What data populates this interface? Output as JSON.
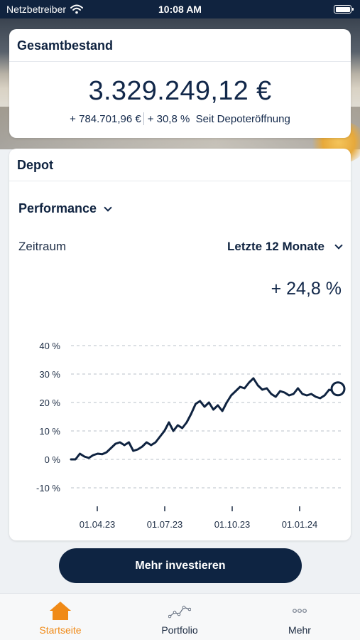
{
  "status_bar": {
    "carrier": "Netzbetreiber",
    "time": "10:08 AM"
  },
  "total": {
    "title": "Gesamtbestand",
    "amount": "3.329.249,12 €",
    "change_abs": "+ 784.701,96 €",
    "change_pct": "+ 30,8 %",
    "since": "Seit Depoteröffnung"
  },
  "depot": {
    "title": "Depot",
    "view_select": "Performance",
    "period_label": "Zeitraum",
    "period_value": "Letzte 12 Monate",
    "performance": "+ 24,8 %"
  },
  "chart_data": {
    "type": "line",
    "x_tick_labels": [
      "01.04.23",
      "01.07.23",
      "01.10.23",
      "01.01.24"
    ],
    "y_tick_labels": [
      "40 %",
      "30 %",
      "20 %",
      "10 %",
      "0 %",
      "-10 %"
    ],
    "ylim": [
      -10,
      40
    ],
    "grid": true,
    "line_color": "#0f2340",
    "series": [
      {
        "values": [
          0,
          0,
          2,
          1,
          0.5,
          1.5,
          2,
          1.8,
          2.5,
          4,
          5.5,
          6,
          5,
          6,
          3,
          3.5,
          4.5,
          6,
          5,
          6,
          8,
          10,
          13,
          10,
          12,
          11,
          13,
          16,
          19.5,
          20.5,
          18.5,
          20,
          17.5,
          19,
          17,
          20,
          22.5,
          24,
          25.5,
          25,
          27,
          28.5,
          26,
          24.5,
          25,
          23,
          22,
          24,
          23.5,
          22.5,
          23,
          25,
          23,
          22.5,
          23,
          22,
          21.5,
          22.5,
          24.5,
          24,
          24.8
        ]
      }
    ]
  },
  "cta": {
    "label": "Mehr investieren"
  },
  "tabbar": {
    "items": [
      {
        "label": "Startseite",
        "icon": "house-icon",
        "active": true
      },
      {
        "label": "Portfolio",
        "icon": "line-chart-icon",
        "active": false
      },
      {
        "label": "Mehr",
        "icon": "more-dots-icon",
        "active": false
      }
    ]
  },
  "colors": {
    "navy": "#0f2340",
    "accent": "#f08a17"
  }
}
